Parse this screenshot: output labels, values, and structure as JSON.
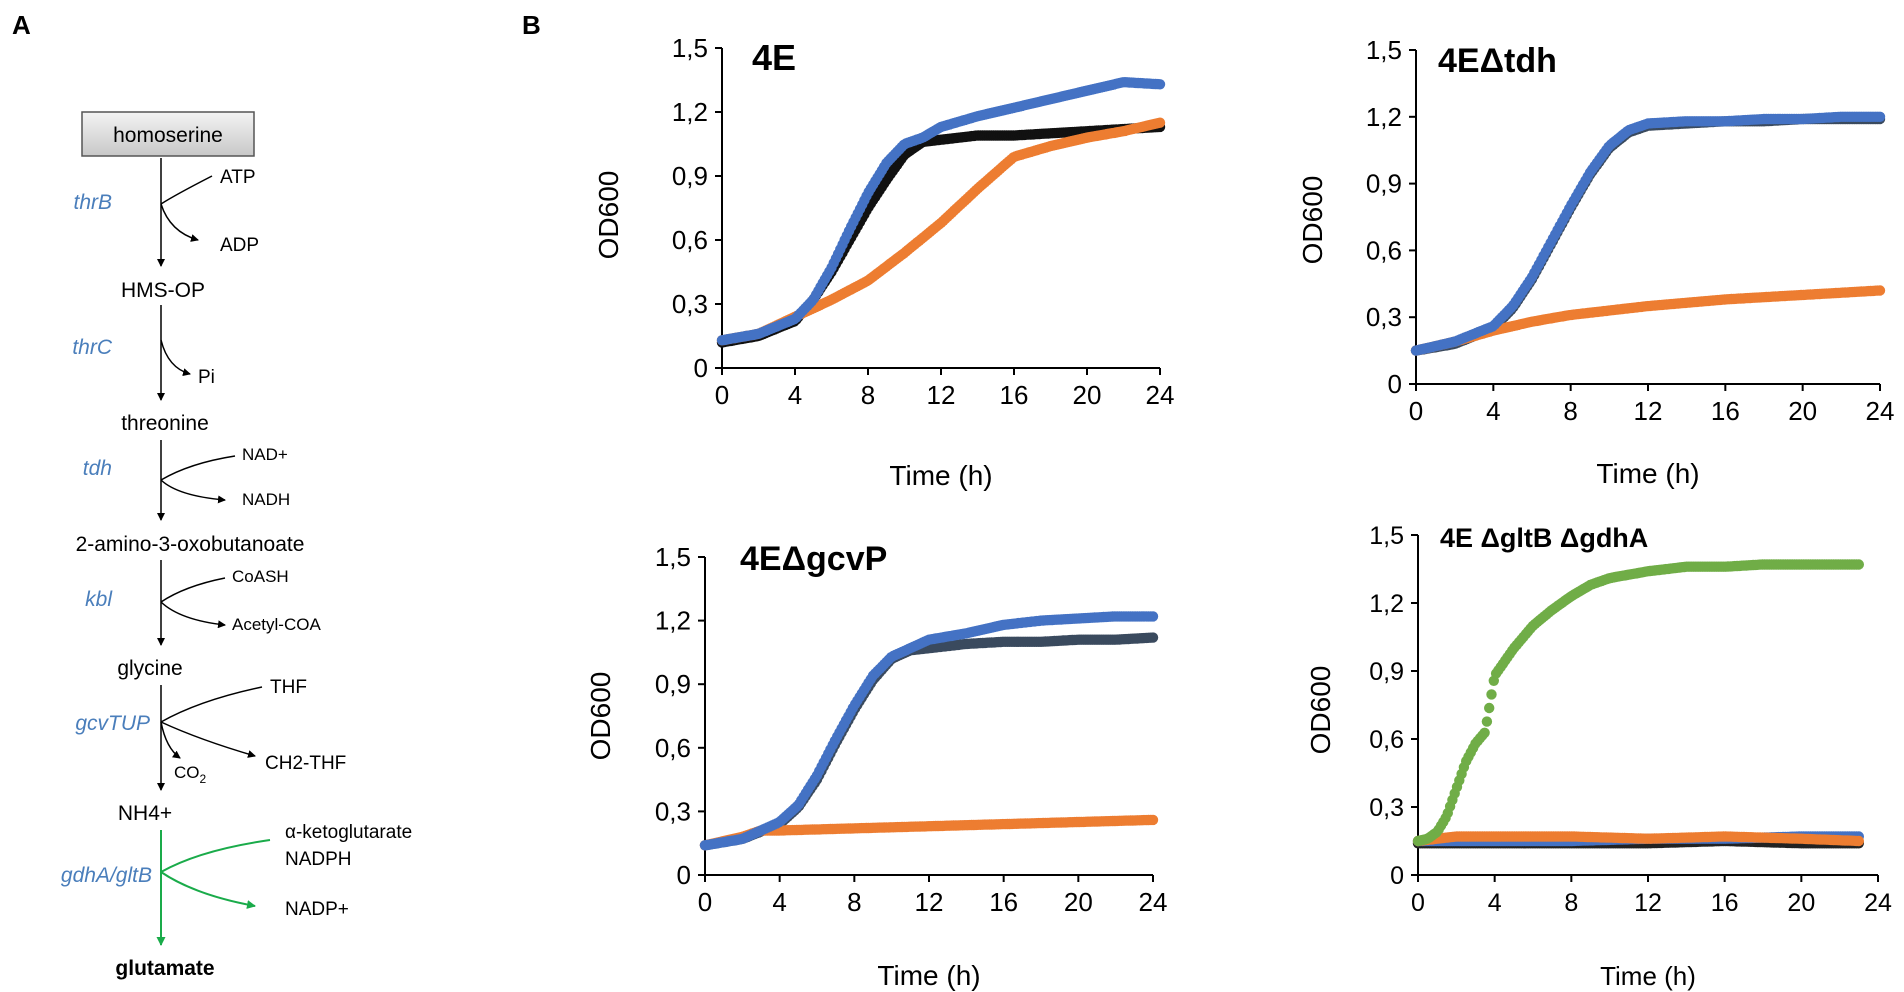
{
  "panel_labels": {
    "a": "A",
    "b": "B"
  },
  "pathway": {
    "start": "homoserine",
    "intermediates": [
      "HMS-OP",
      "threonine",
      "2-amino-3-oxobutanoate",
      "glycine",
      "NH4+"
    ],
    "end": "glutamate",
    "enzymes": [
      "thrB",
      "thrC",
      "tdh",
      "kbl",
      "gcvTUP",
      "gdhA/gltB"
    ],
    "cofactors": {
      "thrB_in": "ATP",
      "thrB_out": "ADP",
      "thrC_out": "Pi",
      "tdh_in": "NAD+",
      "tdh_out": "NADH",
      "kbl_in": "CoASH",
      "kbl_out": "Acetyl-COA",
      "gcv_in": "THF",
      "gcv_out": "CH2-THF",
      "gcv_co2": "CO",
      "gcv_co2_sub": "2",
      "gdh_in1": "α-ketoglutarate",
      "gdh_in2": "NADPH",
      "gdh_out": "NADP+"
    },
    "colors": {
      "enzyme": "#4a7ebb",
      "green": "#1aab4a",
      "box_fill": "#dcdcdc"
    }
  },
  "chart_data": [
    {
      "type": "scatter",
      "title": "4E",
      "xlabel": "Time (h)",
      "ylabel": "OD600",
      "xlim": [
        0,
        24
      ],
      "ylim": [
        0,
        1.5
      ],
      "xticks": [
        "0",
        "4",
        "8",
        "12",
        "16",
        "20",
        "24"
      ],
      "yticks": [
        "0",
        "0,3",
        "0,6",
        "0,9",
        "1,2",
        "1,5"
      ],
      "series": [
        {
          "name": "black",
          "color": "#111111",
          "x": [
            0,
            2,
            4,
            5,
            6,
            7,
            8,
            9,
            10,
            11,
            12,
            14,
            16,
            18,
            20,
            22,
            24
          ],
          "y": [
            0.12,
            0.15,
            0.22,
            0.32,
            0.45,
            0.6,
            0.75,
            0.88,
            1.0,
            1.06,
            1.07,
            1.09,
            1.09,
            1.1,
            1.11,
            1.12,
            1.13
          ]
        },
        {
          "name": "orange",
          "color": "#ed7d31",
          "x": [
            0,
            2,
            4,
            6,
            8,
            10,
            12,
            14,
            16,
            18,
            20,
            22,
            24
          ],
          "y": [
            0.13,
            0.16,
            0.24,
            0.32,
            0.41,
            0.54,
            0.68,
            0.84,
            0.99,
            1.04,
            1.08,
            1.11,
            1.15
          ]
        },
        {
          "name": "blue",
          "color": "#4472c4",
          "x": [
            0,
            2,
            4,
            5,
            6,
            7,
            8,
            9,
            10,
            11,
            12,
            14,
            16,
            18,
            20,
            22,
            24
          ],
          "y": [
            0.13,
            0.16,
            0.23,
            0.32,
            0.47,
            0.65,
            0.82,
            0.96,
            1.05,
            1.08,
            1.13,
            1.18,
            1.22,
            1.26,
            1.3,
            1.34,
            1.33
          ]
        }
      ]
    },
    {
      "type": "scatter",
      "title": "4EΔtdh",
      "xlabel": "Time (h)",
      "ylabel": "OD600",
      "xlim": [
        0,
        24
      ],
      "ylim": [
        0,
        1.5
      ],
      "xticks": [
        "0",
        "4",
        "8",
        "12",
        "16",
        "20",
        "24"
      ],
      "yticks": [
        "0",
        "0,3",
        "0,6",
        "0,9",
        "1,2",
        "1,5"
      ],
      "series": [
        {
          "name": "black",
          "color": "#3a4a5e",
          "x": [
            0,
            2,
            4,
            5,
            6,
            7,
            8,
            9,
            10,
            11,
            12,
            14,
            16,
            18,
            20,
            22,
            24
          ],
          "y": [
            0.15,
            0.18,
            0.25,
            0.34,
            0.47,
            0.63,
            0.79,
            0.94,
            1.06,
            1.13,
            1.16,
            1.17,
            1.18,
            1.18,
            1.19,
            1.19,
            1.19
          ]
        },
        {
          "name": "orange",
          "color": "#ed7d31",
          "x": [
            0,
            2,
            4,
            6,
            8,
            10,
            12,
            16,
            20,
            24
          ],
          "y": [
            0.15,
            0.19,
            0.24,
            0.28,
            0.31,
            0.33,
            0.35,
            0.38,
            0.4,
            0.42
          ]
        },
        {
          "name": "blue",
          "color": "#4472c4",
          "x": [
            0,
            2,
            4,
            5,
            6,
            7,
            8,
            9,
            10,
            11,
            12,
            14,
            16,
            18,
            20,
            22,
            24
          ],
          "y": [
            0.15,
            0.19,
            0.26,
            0.35,
            0.48,
            0.64,
            0.8,
            0.95,
            1.07,
            1.14,
            1.17,
            1.18,
            1.18,
            1.19,
            1.19,
            1.2,
            1.2
          ]
        }
      ]
    },
    {
      "type": "scatter",
      "title": "4EΔgcvP",
      "xlabel": "Time (h)",
      "ylabel": "OD600",
      "xlim": [
        0,
        24
      ],
      "ylim": [
        0,
        1.5
      ],
      "xticks": [
        "0",
        "4",
        "8",
        "12",
        "16",
        "20",
        "24"
      ],
      "yticks": [
        "0",
        "0,3",
        "0,6",
        "0,9",
        "1,2",
        "1,5"
      ],
      "series": [
        {
          "name": "black",
          "color": "#3a4a5e",
          "x": [
            0,
            2,
            4,
            5,
            6,
            7,
            8,
            9,
            10,
            11,
            12,
            14,
            16,
            18,
            20,
            22,
            24
          ],
          "y": [
            0.14,
            0.17,
            0.24,
            0.32,
            0.45,
            0.62,
            0.78,
            0.92,
            1.02,
            1.06,
            1.07,
            1.09,
            1.1,
            1.1,
            1.11,
            1.11,
            1.12
          ]
        },
        {
          "name": "orange",
          "color": "#ed7d31",
          "x": [
            0,
            2,
            3,
            4,
            8,
            12,
            16,
            20,
            24
          ],
          "y": [
            0.14,
            0.18,
            0.21,
            0.21,
            0.22,
            0.23,
            0.24,
            0.25,
            0.26
          ]
        },
        {
          "name": "blue",
          "color": "#4472c4",
          "x": [
            0,
            2,
            4,
            5,
            6,
            7,
            8,
            9,
            10,
            11,
            12,
            14,
            16,
            18,
            20,
            22,
            24
          ],
          "y": [
            0.14,
            0.17,
            0.25,
            0.33,
            0.47,
            0.64,
            0.8,
            0.94,
            1.03,
            1.07,
            1.11,
            1.14,
            1.18,
            1.2,
            1.21,
            1.22,
            1.22
          ]
        }
      ]
    },
    {
      "type": "scatter",
      "title": "4E ΔgltB ΔgdhA",
      "xlabel": "Time (h)",
      "ylabel": "OD600",
      "xlim": [
        0,
        24
      ],
      "ylim": [
        0,
        1.5
      ],
      "xticks": [
        "0",
        "4",
        "8",
        "12",
        "16",
        "20",
        "24"
      ],
      "yticks": [
        "0",
        "0,3",
        "0,6",
        "0,9",
        "1,2",
        "1,5"
      ],
      "series": [
        {
          "name": "black",
          "color": "#222222",
          "x": [
            0,
            4,
            8,
            12,
            16,
            20,
            23
          ],
          "y": [
            0.14,
            0.14,
            0.14,
            0.14,
            0.15,
            0.14,
            0.14
          ]
        },
        {
          "name": "blue",
          "color": "#4472c4",
          "x": [
            0,
            4,
            8,
            12,
            16,
            20,
            23
          ],
          "y": [
            0.15,
            0.15,
            0.15,
            0.16,
            0.16,
            0.17,
            0.17
          ]
        },
        {
          "name": "orange",
          "color": "#ed7d31",
          "x": [
            0,
            2,
            4,
            8,
            12,
            16,
            20,
            23
          ],
          "y": [
            0.15,
            0.17,
            0.17,
            0.17,
            0.16,
            0.17,
            0.16,
            0.15
          ]
        },
        {
          "name": "green",
          "color": "#70ad47",
          "x": [
            0,
            0.5,
            1,
            1.5,
            2,
            2.5,
            3,
            3.5,
            4,
            5,
            6,
            7,
            8,
            9,
            10,
            12,
            14,
            16,
            18,
            20,
            23
          ],
          "y": [
            0.15,
            0.16,
            0.19,
            0.26,
            0.38,
            0.5,
            0.58,
            0.63,
            0.88,
            1.0,
            1.1,
            1.17,
            1.23,
            1.28,
            1.31,
            1.34,
            1.36,
            1.36,
            1.37,
            1.37,
            1.37
          ]
        }
      ]
    }
  ]
}
